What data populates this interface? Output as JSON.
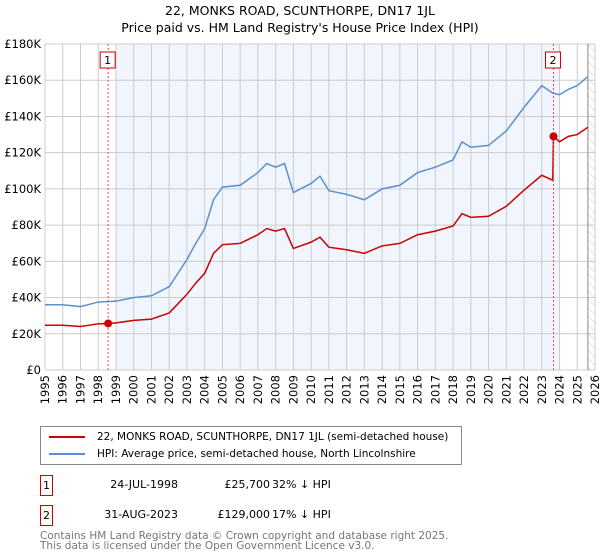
{
  "chart_data": {
    "type": "line",
    "title": "22, MONKS ROAD, SCUNTHORPE, DN17 1JL",
    "subtitle": "Price paid vs. HM Land Registry's House Price Index (HPI)",
    "xlim": [
      1995,
      2026
    ],
    "ylim": [
      0,
      180000
    ],
    "yticks": [
      0,
      20000,
      40000,
      60000,
      80000,
      100000,
      120000,
      140000,
      160000,
      180000
    ],
    "ytick_labels": [
      "£0",
      "£20K",
      "£40K",
      "£60K",
      "£80K",
      "£100K",
      "£120K",
      "£140K",
      "£160K",
      "£180K"
    ],
    "xticks": [
      "1995",
      "1996",
      "1997",
      "1998",
      "1999",
      "2000",
      "2001",
      "2002",
      "2003",
      "2004",
      "2005",
      "2006",
      "2007",
      "2008",
      "2009",
      "2010",
      "2011",
      "2012",
      "2013",
      "2014",
      "2015",
      "2016",
      "2017",
      "2018",
      "2019",
      "2020",
      "2021",
      "2022",
      "2023",
      "2024",
      "2025",
      "2026"
    ],
    "grid": true,
    "series": [
      {
        "name": "22, MONKS ROAD, SCUNTHORPE, DN17 1JL (semi-detached house)",
        "color": "#cc0000",
        "x": [
          1995,
          1996,
          1997,
          1998,
          1998.56,
          1999,
          2000,
          2001,
          2002,
          2003,
          2003.5,
          2004,
          2004.5,
          2005,
          2006,
          2007,
          2007.5,
          2008,
          2008.5,
          2009,
          2010,
          2010.5,
          2011,
          2012,
          2013,
          2014,
          2015,
          2016,
          2017,
          2018,
          2018.5,
          2019,
          2020,
          2021,
          2022,
          2023,
          2023.62,
          2023.66,
          2024,
          2024.5,
          2025,
          2025.6
        ],
        "y": [
          24700,
          24700,
          24000,
          25500,
          25700,
          26000,
          27400,
          28100,
          31500,
          41800,
          48000,
          53400,
          64400,
          69200,
          69900,
          74700,
          78100,
          76700,
          78100,
          67100,
          70600,
          73300,
          67800,
          66400,
          64400,
          68500,
          69900,
          74700,
          76700,
          79500,
          86300,
          84300,
          84900,
          90400,
          99300,
          107500,
          104800,
          129000,
          126000,
          129000,
          130000,
          134000
        ]
      },
      {
        "name": "HPI: Average price, semi-detached house, North Lincolnshire",
        "color": "#5b8fd0",
        "x": [
          1995,
          1996,
          1997,
          1998,
          1999,
          2000,
          2001,
          2002,
          2003,
          2003.5,
          2004,
          2004.5,
          2005,
          2006,
          2007,
          2007.5,
          2008,
          2008.5,
          2009,
          2010,
          2010.5,
          2011,
          2012,
          2013,
          2014,
          2015,
          2016,
          2017,
          2018,
          2018.5,
          2019,
          2020,
          2021,
          2022,
          2023,
          2023.6,
          2024,
          2024.5,
          2025,
          2025.6
        ],
        "y": [
          36000,
          36000,
          35000,
          37500,
          38000,
          40000,
          41000,
          46000,
          61000,
          70000,
          78000,
          94000,
          101000,
          102000,
          109000,
          114000,
          112000,
          114000,
          98000,
          103000,
          107000,
          99000,
          97000,
          94000,
          100000,
          102000,
          109000,
          112000,
          116000,
          126000,
          123000,
          124000,
          132000,
          145000,
          157000,
          153000,
          152000,
          155000,
          157000,
          162000
        ]
      }
    ],
    "sales": [
      {
        "label": "1",
        "x": 1998.56,
        "y": 25700,
        "date": "24-JUL-1998",
        "price": "£25,700",
        "hpi": "32% ↓ HPI"
      },
      {
        "label": "2",
        "x": 2023.66,
        "y": 129000,
        "date": "31-AUG-2023",
        "price": "£129,000",
        "hpi": "17% ↓ HPI"
      }
    ],
    "shaded_range": [
      1999,
      2024
    ],
    "hatched_from": 2025.6
  },
  "footer": {
    "line1": "Contains HM Land Registry data © Crown copyright and database right 2025.",
    "line2": "This data is licensed under the Open Government Licence v3.0."
  }
}
